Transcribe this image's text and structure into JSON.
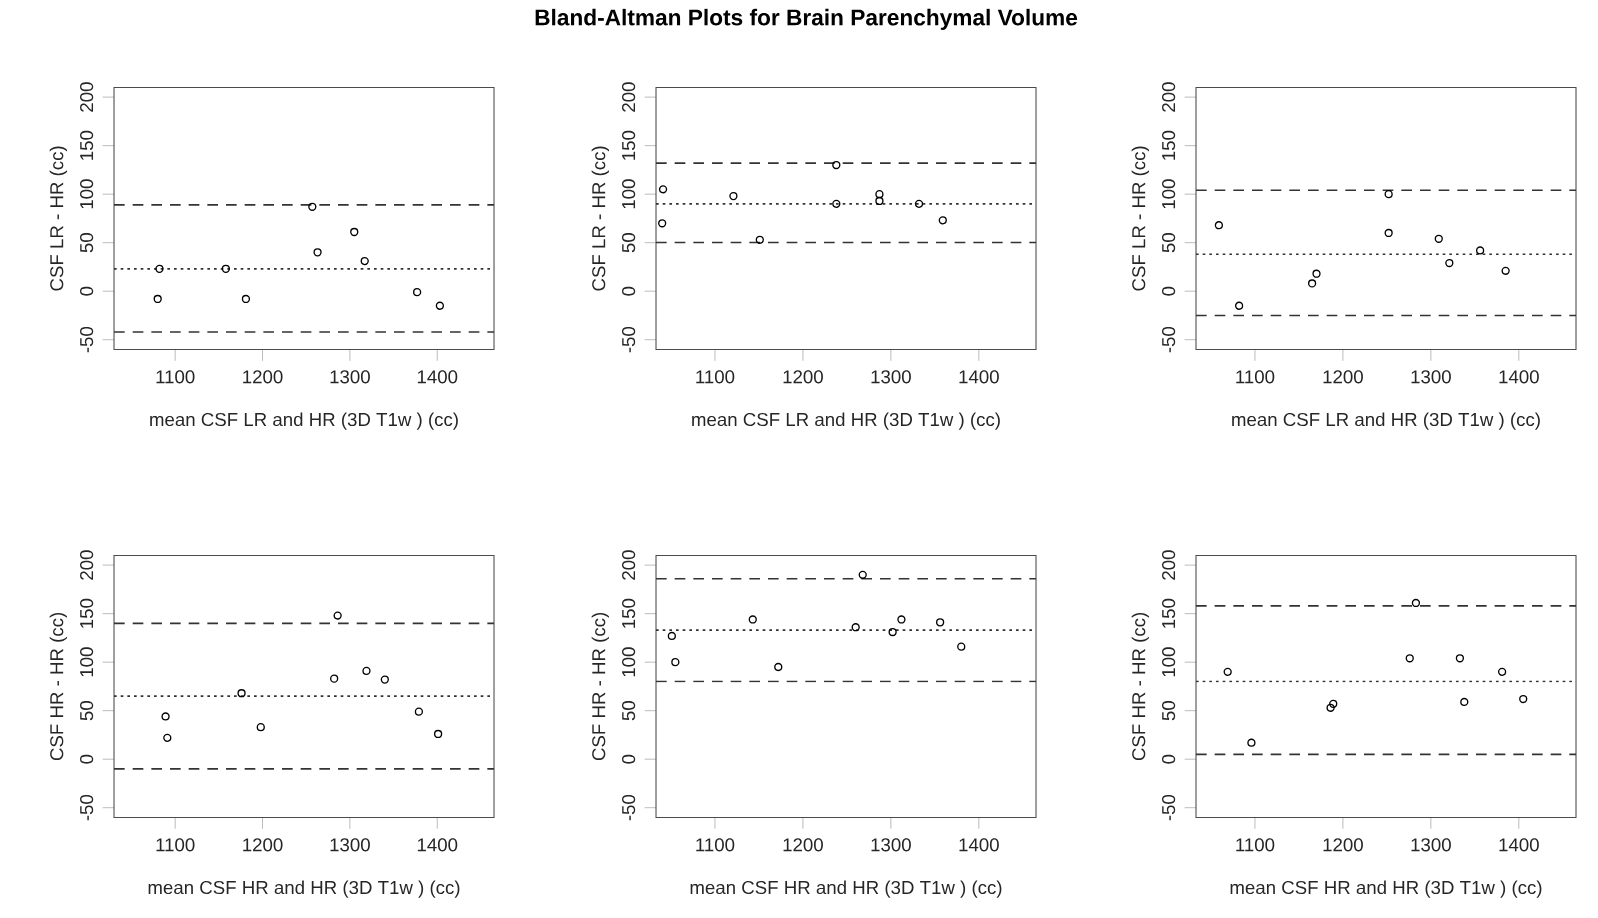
{
  "chart_data": [
    {
      "type": "scatter",
      "xlabel": "mean CSF LR and HR (3D T1w ) (cc)",
      "ylabel": "CSF LR - HR (cc)",
      "marker": "circle",
      "grid": false,
      "xlim": [
        1030,
        1465
      ],
      "ylim": [
        -60,
        210
      ],
      "xticks": [
        1100,
        1200,
        1300,
        1400
      ],
      "yticks": [
        -50,
        0,
        50,
        100,
        150,
        200
      ],
      "series": [
        {
          "color": "#000000",
          "x": [
            1080,
            1082,
            1158,
            1181,
            1257,
            1263,
            1305,
            1317,
            1377,
            1403
          ],
          "values": [
            -8,
            23,
            23,
            -8,
            87,
            40,
            61,
            31,
            -1,
            -15
          ]
        }
      ],
      "ref_lines": [
        {
          "axis": "y",
          "value": 89,
          "line_style": "dashed"
        },
        {
          "axis": "y",
          "value": 23,
          "line_style": "dotted"
        },
        {
          "axis": "y",
          "value": -42,
          "line_style": "dashed"
        }
      ]
    },
    {
      "type": "scatter",
      "title": "Bland-Altman Plots for Brain Parenchymal Volume",
      "xlabel": "mean CSF LR and HR (3D T1w ) (cc)",
      "ylabel": "CSF LR - HR (cc)",
      "marker": "circle",
      "grid": false,
      "xlim": [
        1033,
        1465
      ],
      "ylim": [
        -60,
        210
      ],
      "xticks": [
        1100,
        1200,
        1300,
        1400
      ],
      "yticks": [
        -50,
        0,
        50,
        100,
        150,
        200
      ],
      "series": [
        {
          "color": "#000000",
          "x": [
            1041,
            1040,
            1121,
            1151,
            1238,
            1238,
            1287,
            1287,
            1332,
            1359
          ],
          "values": [
            105,
            70,
            98,
            53,
            130,
            90,
            100,
            93,
            90,
            73
          ]
        }
      ],
      "ref_lines": [
        {
          "axis": "y",
          "value": 132,
          "line_style": "dashed"
        },
        {
          "axis": "y",
          "value": 90,
          "line_style": "dotted"
        },
        {
          "axis": "y",
          "value": 50,
          "line_style": "dashed"
        }
      ]
    },
    {
      "type": "scatter",
      "xlabel": "mean CSF LR and HR (3D T1w ) (cc)",
      "ylabel": "CSF LR - HR (cc)",
      "marker": "circle",
      "grid": false,
      "xlim": [
        1033,
        1465
      ],
      "ylim": [
        -60,
        210
      ],
      "xticks": [
        1100,
        1200,
        1300,
        1400
      ],
      "yticks": [
        -50,
        0,
        50,
        100,
        150,
        200
      ],
      "series": [
        {
          "color": "#000000",
          "x": [
            1059,
            1082,
            1165,
            1170,
            1252,
            1252,
            1309,
            1321,
            1356,
            1385
          ],
          "values": [
            68,
            -15,
            8,
            18,
            100,
            60,
            54,
            29,
            42,
            21
          ]
        }
      ],
      "ref_lines": [
        {
          "axis": "y",
          "value": 104,
          "line_style": "dashed"
        },
        {
          "axis": "y",
          "value": 38,
          "line_style": "dotted"
        },
        {
          "axis": "y",
          "value": -25,
          "line_style": "dashed"
        }
      ]
    },
    {
      "type": "scatter",
      "xlabel": "mean CSF HR and HR (3D T1w ) (cc)",
      "ylabel": "CSF HR - HR (cc)",
      "marker": "circle",
      "grid": false,
      "xlim": [
        1030,
        1465
      ],
      "ylim": [
        -60,
        210
      ],
      "xticks": [
        1100,
        1200,
        1300,
        1400
      ],
      "yticks": [
        -50,
        0,
        50,
        100,
        150,
        200
      ],
      "series": [
        {
          "color": "#000000",
          "x": [
            1089,
            1091,
            1176,
            1198,
            1282,
            1286,
            1319,
            1340,
            1379,
            1401
          ],
          "values": [
            44,
            22,
            68,
            33,
            83,
            148,
            91,
            82,
            49,
            26
          ]
        }
      ],
      "ref_lines": [
        {
          "axis": "y",
          "value": 140,
          "line_style": "dashed"
        },
        {
          "axis": "y",
          "value": 65,
          "line_style": "dotted"
        },
        {
          "axis": "y",
          "value": -10,
          "line_style": "dashed"
        }
      ]
    },
    {
      "type": "scatter",
      "xlabel": "mean CSF HR and HR (3D T1w ) (cc)",
      "ylabel": "CSF HR - HR (cc)",
      "marker": "circle",
      "grid": false,
      "xlim": [
        1033,
        1465
      ],
      "ylim": [
        -60,
        210
      ],
      "xticks": [
        1100,
        1200,
        1300,
        1400
      ],
      "yticks": [
        -50,
        0,
        50,
        100,
        150,
        200
      ],
      "series": [
        {
          "color": "#000000",
          "x": [
            1051,
            1055,
            1143,
            1172,
            1260,
            1268,
            1302,
            1312,
            1356,
            1380
          ],
          "values": [
            127,
            100,
            144,
            95,
            136,
            190,
            131,
            144,
            141,
            116
          ]
        }
      ],
      "ref_lines": [
        {
          "axis": "y",
          "value": 186,
          "line_style": "dashed"
        },
        {
          "axis": "y",
          "value": 133,
          "line_style": "dotted"
        },
        {
          "axis": "y",
          "value": 80,
          "line_style": "dashed"
        }
      ]
    },
    {
      "type": "scatter",
      "xlabel": "mean CSF HR and HR (3D T1w ) (cc)",
      "ylabel": "CSF HR - HR (cc)",
      "marker": "circle",
      "grid": false,
      "xlim": [
        1033,
        1465
      ],
      "ylim": [
        -60,
        210
      ],
      "xticks": [
        1100,
        1200,
        1300,
        1400
      ],
      "yticks": [
        -50,
        0,
        50,
        100,
        150,
        200
      ],
      "series": [
        {
          "color": "#000000",
          "x": [
            1069,
            1096,
            1186,
            1189,
            1276,
            1283,
            1333,
            1338,
            1381,
            1405
          ],
          "values": [
            90,
            17,
            53,
            57,
            104,
            161,
            104,
            59,
            90,
            62
          ]
        }
      ],
      "ref_lines": [
        {
          "axis": "y",
          "value": 158,
          "line_style": "dashed"
        },
        {
          "axis": "y",
          "value": 80,
          "line_style": "dotted"
        },
        {
          "axis": "y",
          "value": 5,
          "line_style": "dashed"
        }
      ]
    }
  ]
}
